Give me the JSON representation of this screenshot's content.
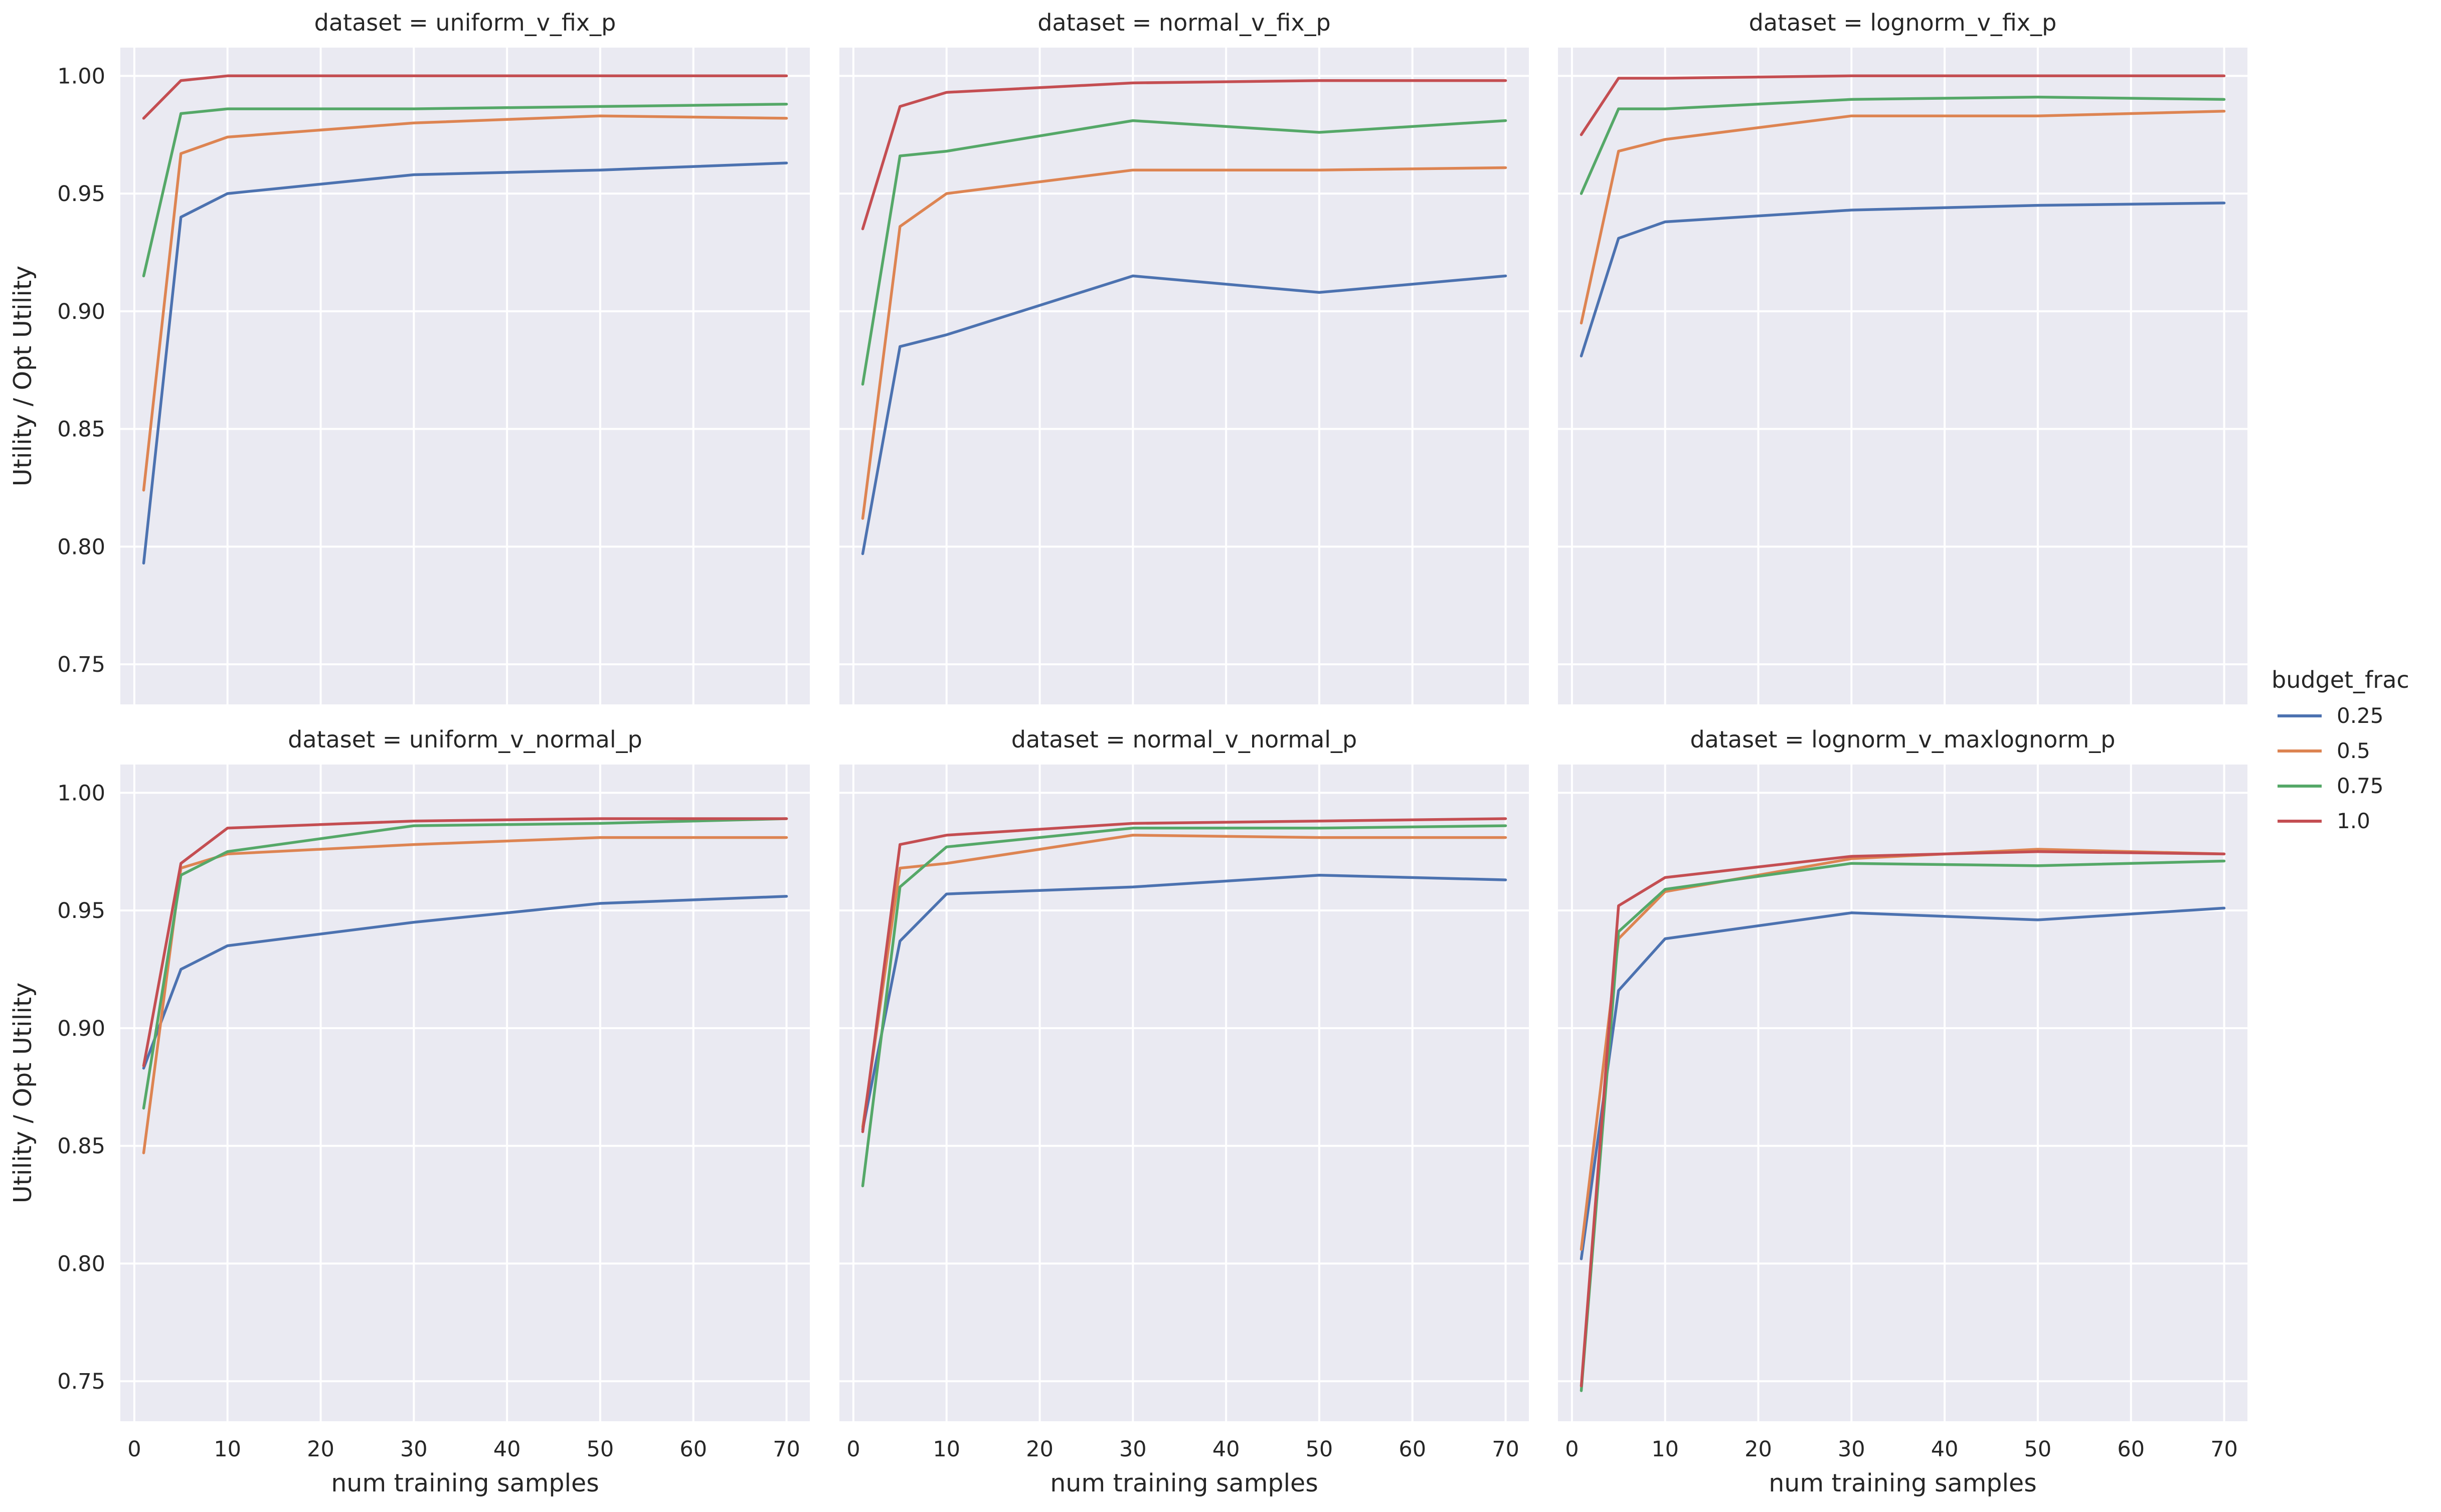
{
  "chart_data": {
    "type": "line",
    "layout": "facet-grid-2x3",
    "xlabel": "num training samples",
    "ylabel": "Utility / Opt Utility",
    "x": [
      1,
      5,
      10,
      30,
      50,
      70
    ],
    "xlim": [
      -1.5,
      72.5
    ],
    "ylim": [
      0.733,
      1.012
    ],
    "xticks": [
      0,
      10,
      20,
      30,
      40,
      50,
      60,
      70
    ],
    "xtick_labels": [
      "0",
      "10",
      "20",
      "30",
      "40",
      "50",
      "60",
      "70"
    ],
    "yticks": [
      0.75,
      0.8,
      0.85,
      0.9,
      0.95,
      1.0
    ],
    "ytick_labels": [
      "0.75",
      "0.80",
      "0.85",
      "0.90",
      "0.95",
      "1.00"
    ],
    "grid": true,
    "legend": {
      "title": "budget_frac",
      "position": "right",
      "entries": [
        "0.25",
        "0.5",
        "0.75",
        "1.0"
      ],
      "colors": [
        "#4c72b0",
        "#dd8452",
        "#55a868",
        "#c44e52"
      ]
    },
    "panels": [
      {
        "title": "dataset = uniform_v_fix_p",
        "series": [
          {
            "name": "0.25",
            "values": [
              0.793,
              0.94,
              0.95,
              0.958,
              0.96,
              0.963
            ]
          },
          {
            "name": "0.5",
            "values": [
              0.824,
              0.967,
              0.974,
              0.98,
              0.983,
              0.982
            ]
          },
          {
            "name": "0.75",
            "values": [
              0.915,
              0.984,
              0.986,
              0.986,
              0.987,
              0.988
            ]
          },
          {
            "name": "1.0",
            "values": [
              0.982,
              0.998,
              1.0,
              1.0,
              1.0,
              1.0
            ]
          }
        ]
      },
      {
        "title": "dataset = normal_v_fix_p",
        "series": [
          {
            "name": "0.25",
            "values": [
              0.797,
              0.885,
              0.89,
              0.915,
              0.908,
              0.915
            ]
          },
          {
            "name": "0.5",
            "values": [
              0.812,
              0.936,
              0.95,
              0.96,
              0.96,
              0.961
            ]
          },
          {
            "name": "0.75",
            "values": [
              0.869,
              0.966,
              0.968,
              0.981,
              0.976,
              0.981
            ]
          },
          {
            "name": "1.0",
            "values": [
              0.935,
              0.987,
              0.993,
              0.997,
              0.998,
              0.998
            ]
          }
        ]
      },
      {
        "title": "dataset = lognorm_v_fix_p",
        "series": [
          {
            "name": "0.25",
            "values": [
              0.881,
              0.931,
              0.938,
              0.943,
              0.945,
              0.946
            ]
          },
          {
            "name": "0.5",
            "values": [
              0.895,
              0.968,
              0.973,
              0.983,
              0.983,
              0.985
            ]
          },
          {
            "name": "0.75",
            "values": [
              0.95,
              0.986,
              0.986,
              0.99,
              0.991,
              0.99
            ]
          },
          {
            "name": "1.0",
            "values": [
              0.975,
              0.999,
              0.999,
              1.0,
              1.0,
              1.0
            ]
          }
        ]
      },
      {
        "title": "dataset = uniform_v_normal_p",
        "series": [
          {
            "name": "0.25",
            "values": [
              0.883,
              0.925,
              0.935,
              0.945,
              0.953,
              0.956
            ]
          },
          {
            "name": "0.5",
            "values": [
              0.847,
              0.968,
              0.974,
              0.978,
              0.981,
              0.981
            ]
          },
          {
            "name": "0.75",
            "values": [
              0.866,
              0.965,
              0.975,
              0.986,
              0.987,
              0.989
            ]
          },
          {
            "name": "1.0",
            "values": [
              0.884,
              0.97,
              0.985,
              0.988,
              0.989,
              0.989
            ]
          }
        ]
      },
      {
        "title": "dataset = normal_v_normal_p",
        "series": [
          {
            "name": "0.25",
            "values": [
              0.857,
              0.937,
              0.957,
              0.96,
              0.965,
              0.963
            ]
          },
          {
            "name": "0.5",
            "values": [
              0.858,
              0.968,
              0.97,
              0.982,
              0.981,
              0.981
            ]
          },
          {
            "name": "0.75",
            "values": [
              0.833,
              0.96,
              0.977,
              0.985,
              0.985,
              0.986
            ]
          },
          {
            "name": "1.0",
            "values": [
              0.856,
              0.978,
              0.982,
              0.987,
              0.988,
              0.989
            ]
          }
        ]
      },
      {
        "title": "dataset = lognorm_v_maxlognorm_p",
        "series": [
          {
            "name": "0.25",
            "values": [
              0.802,
              0.916,
              0.938,
              0.949,
              0.946,
              0.951
            ]
          },
          {
            "name": "0.5",
            "values": [
              0.806,
              0.938,
              0.958,
              0.972,
              0.976,
              0.974
            ]
          },
          {
            "name": "0.75",
            "values": [
              0.746,
              0.941,
              0.959,
              0.97,
              0.969,
              0.971
            ]
          },
          {
            "name": "1.0",
            "values": [
              0.748,
              0.952,
              0.964,
              0.973,
              0.975,
              0.974
            ]
          }
        ]
      }
    ]
  }
}
